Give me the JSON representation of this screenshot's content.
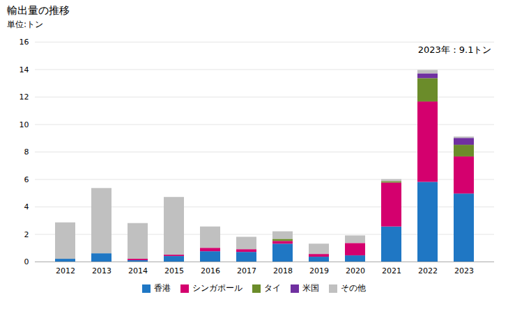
{
  "chart_data": {
    "type": "bar",
    "stacked": true,
    "title": "輸出量の推移",
    "subtitle": "単位:トン",
    "annotation": "2023年：9.1トン",
    "categories": [
      "2012",
      "2013",
      "2014",
      "2015",
      "2016",
      "2017",
      "2018",
      "2019",
      "2020",
      "2021",
      "2022",
      "2023"
    ],
    "series": [
      {
        "name": "香港",
        "color": "#1f77c4",
        "values": [
          0.2,
          0.6,
          0.1,
          0.4,
          0.75,
          0.7,
          1.3,
          0.35,
          0.45,
          2.55,
          5.8,
          4.95
        ]
      },
      {
        "name": "シンガポール",
        "color": "#d4006e",
        "values": [
          0.0,
          0.0,
          0.1,
          0.1,
          0.25,
          0.2,
          0.2,
          0.2,
          0.9,
          3.2,
          5.85,
          2.7
        ]
      },
      {
        "name": "タイ",
        "color": "#6b8c2a",
        "values": [
          0.0,
          0.0,
          0.0,
          0.0,
          0.0,
          0.0,
          0.15,
          0.0,
          0.0,
          0.1,
          1.7,
          0.85
        ]
      },
      {
        "name": "米国",
        "color": "#7030a0",
        "values": [
          0.0,
          0.0,
          0.0,
          0.0,
          0.0,
          0.0,
          0.0,
          0.0,
          0.0,
          0.0,
          0.35,
          0.5
        ]
      },
      {
        "name": "その他",
        "color": "#c0c0c0",
        "values": [
          2.65,
          4.75,
          2.6,
          4.2,
          1.55,
          0.9,
          0.55,
          0.75,
          0.55,
          0.15,
          0.25,
          0.1
        ]
      }
    ],
    "ylim": [
      0,
      16
    ],
    "yticks": [
      0,
      2,
      4,
      6,
      8,
      10,
      12,
      14,
      16
    ],
    "grid": true,
    "legend": "bottom"
  }
}
